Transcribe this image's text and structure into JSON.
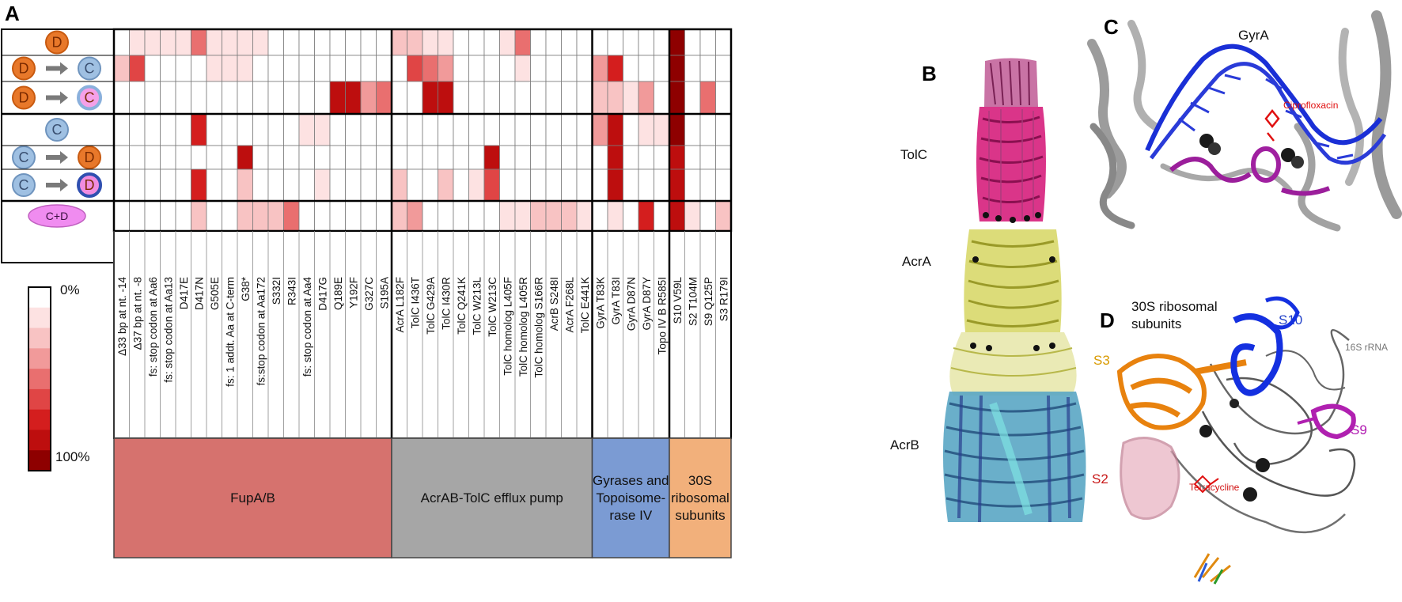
{
  "panels": {
    "a": "A",
    "b": "B",
    "c": "C",
    "d": "D"
  },
  "row_icons": {
    "d": "D",
    "c": "C",
    "cd": "C+D",
    "arrow": "→"
  },
  "mutations": [
    "Δ33 bp at nt. -14",
    "Δ37 bp at nt. -8",
    "fs: stop codon at Aa6",
    "fs: stop codon at Aa13",
    "D417E",
    "D417N",
    "G505E",
    "fs: 1 addt. Aa at C-term",
    "G38*",
    "fs:stop codon at Aa172",
    "S332I",
    "R343I",
    "fs: stop codon at Aa4",
    "D417G",
    "Q189E",
    "Y192F",
    "G327C",
    "S195A",
    "AcrA L182F",
    "TolC I436T",
    "TolC G429A",
    "TolC I430R",
    "TolC Q241K",
    "TolC W213L",
    "TolC W213C",
    "TolC homolog L405F",
    "TolC homolog L405R",
    "TolC homolog S166R",
    "AcrB S248I",
    "AcrA F268L",
    "TolC E441K",
    "GyrA T83K",
    "GyrA T83I",
    "GyrA D87N",
    "GyrA D87Y",
    "Topo IV B R585I",
    "S10 V59L",
    "S2 T104M",
    "S9 Q125P",
    "S3 R179I"
  ],
  "heatmap": [
    [
      0,
      1,
      1,
      1,
      1,
      4,
      1,
      1,
      1,
      1,
      0,
      0,
      0,
      0,
      0,
      0,
      0,
      0,
      2,
      2,
      1,
      1,
      0,
      0,
      0,
      1,
      4,
      0,
      0,
      0,
      0,
      0,
      0,
      0,
      0,
      0,
      8,
      0,
      0,
      0
    ],
    [
      2,
      5,
      0,
      0,
      0,
      0,
      1,
      1,
      1,
      0,
      0,
      0,
      0,
      0,
      0,
      0,
      0,
      0,
      0,
      5,
      4,
      3,
      0,
      0,
      0,
      0,
      1,
      0,
      0,
      0,
      0,
      3,
      6,
      0,
      0,
      0,
      8,
      0,
      0,
      0
    ],
    [
      0,
      0,
      0,
      0,
      0,
      0,
      0,
      0,
      0,
      0,
      0,
      0,
      0,
      0,
      7,
      7,
      3,
      4,
      0,
      0,
      7,
      7,
      0,
      0,
      0,
      0,
      0,
      0,
      0,
      0,
      0,
      2,
      2,
      1,
      3,
      0,
      8,
      0,
      4,
      0
    ],
    [
      0,
      0,
      0,
      0,
      0,
      6,
      0,
      0,
      0,
      0,
      0,
      0,
      1,
      1,
      0,
      0,
      0,
      0,
      0,
      0,
      0,
      0,
      0,
      0,
      0,
      0,
      0,
      0,
      0,
      0,
      0,
      3,
      7,
      0,
      1,
      1,
      8,
      0,
      0,
      0
    ],
    [
      0,
      0,
      0,
      0,
      0,
      0,
      0,
      0,
      7,
      0,
      0,
      0,
      0,
      0,
      0,
      0,
      0,
      0,
      0,
      0,
      0,
      0,
      0,
      0,
      7,
      0,
      0,
      0,
      0,
      0,
      0,
      0,
      7,
      0,
      0,
      0,
      7,
      0,
      0,
      0
    ],
    [
      0,
      0,
      0,
      0,
      0,
      6,
      0,
      0,
      2,
      0,
      0,
      0,
      0,
      1,
      0,
      0,
      0,
      0,
      2,
      0,
      0,
      2,
      0,
      1,
      5,
      0,
      0,
      0,
      0,
      0,
      0,
      0,
      7,
      0,
      0,
      0,
      7,
      0,
      0,
      0
    ],
    [
      0,
      0,
      0,
      0,
      0,
      2,
      0,
      0,
      2,
      2,
      2,
      4,
      0,
      0,
      0,
      0,
      0,
      0,
      2,
      3,
      0,
      0,
      0,
      0,
      0,
      1,
      1,
      2,
      2,
      2,
      1,
      0,
      1,
      0,
      6,
      0,
      7,
      1,
      0,
      2
    ]
  ],
  "groups": [
    {
      "label": "FupA/B",
      "start": 0,
      "end": 18
    },
    {
      "label": "AcrAB-TolC efflux pump",
      "start": 18,
      "end": 31
    },
    {
      "label": "Gyrases and Topoisome-rase IV",
      "lines": [
        "Gyrases and",
        "Topoisome-",
        "rase IV"
      ],
      "start": 31,
      "end": 36
    },
    {
      "label": "30S ribosomal subunits",
      "lines": [
        "30S",
        "ribosomal",
        "subunits"
      ],
      "start": 36,
      "end": 40
    }
  ],
  "scale": {
    "min_label": "0%",
    "max_label": "100%"
  },
  "structure_b": {
    "tolc": "TolC",
    "acra": "AcrA",
    "acrb": "AcrB"
  },
  "structure_c": {
    "protein": "GyrA",
    "drug": "Ciprofloxacin"
  },
  "structure_d": {
    "title_line1": "30S ribosomal",
    "title_line2": "subunits",
    "s10": "S10",
    "rrna": "16S rRNA",
    "s3": "S3",
    "s9": "S9",
    "s2": "S2",
    "drug": "Tetracycline"
  },
  "colors": {
    "levels": [
      "#ffffff",
      "#fde2e2",
      "#f8c3c3",
      "#f19a9a",
      "#e96f6f",
      "#e04545",
      "#d41e1e",
      "#bd0e0e",
      "#8e0000"
    ],
    "fupab": "#d6726e",
    "efflux": "#a6a6a6",
    "gyrase": "#7b9bd3",
    "ribo": "#f2b07b",
    "orange": "#e8782a",
    "blue_circle": "#9fc0e2",
    "magenta": "#f08cf0"
  }
}
